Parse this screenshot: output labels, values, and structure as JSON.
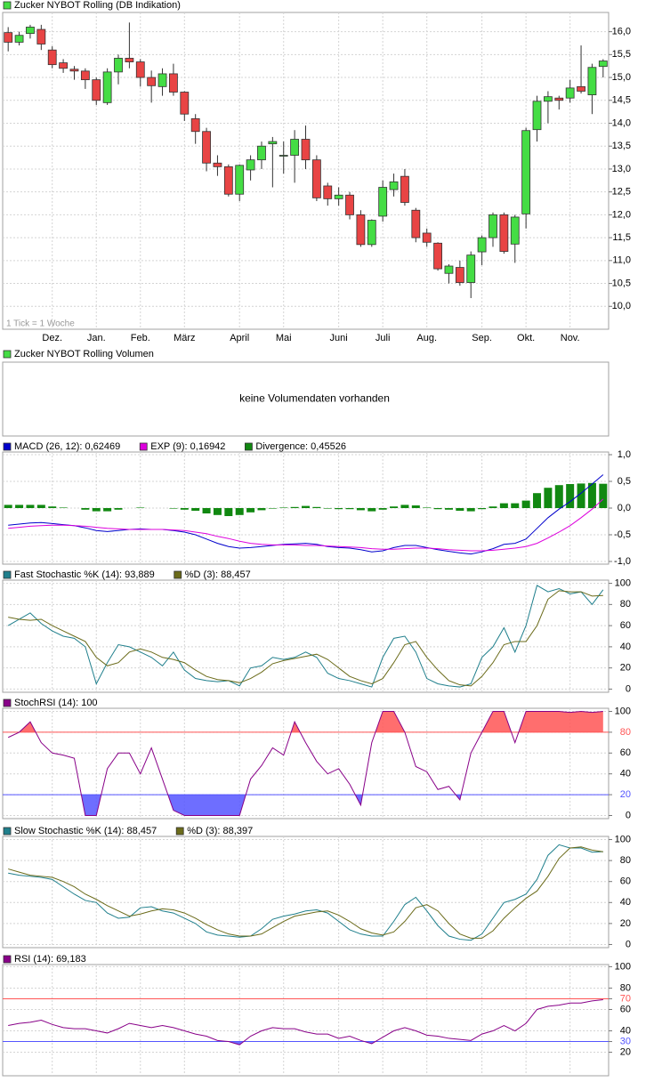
{
  "chart_data": [
    {
      "type": "candlestick",
      "title": "Zucker NYBOT Rolling (DB Indikation)",
      "annotation": "1 Tick = 1 Woche",
      "categories": [
        null,
        null,
        null,
        null,
        "Dez.",
        null,
        null,
        null,
        "Jan.",
        null,
        null,
        null,
        "Feb.",
        null,
        null,
        null,
        "März",
        null,
        null,
        null,
        null,
        "April",
        null,
        null,
        null,
        "Mai",
        null,
        null,
        null,
        null,
        "Juni",
        null,
        null,
        null,
        "Juli",
        null,
        null,
        null,
        "Aug.",
        null,
        null,
        null,
        null,
        "Sep.",
        null,
        null,
        null,
        "Okt.",
        null,
        null,
        null,
        "Nov.",
        null,
        null,
        null
      ],
      "open": [
        15.98,
        15.77,
        15.96,
        16.05,
        15.6,
        15.32,
        15.18,
        15.14,
        14.95,
        14.45,
        15.12,
        15.42,
        15.34,
        15.0,
        14.8,
        15.08,
        14.68,
        14.1,
        13.82,
        13.13,
        13.05,
        12.45,
        12.98,
        13.2,
        13.55,
        13.3,
        13.3,
        13.65,
        13.2,
        12.63,
        12.35,
        12.43,
        12.0,
        11.35,
        11.97,
        12.55,
        12.84,
        12.1,
        11.6,
        11.38,
        10.72,
        10.85,
        10.52,
        11.19,
        11.5,
        12.0,
        11.36,
        12.02,
        13.86,
        14.48,
        14.55,
        14.55,
        14.8,
        14.62,
        15.24
      ],
      "high": [
        16.1,
        16.0,
        16.15,
        16.15,
        15.68,
        15.4,
        15.25,
        15.2,
        15.0,
        15.2,
        15.5,
        16.2,
        15.4,
        15.15,
        15.2,
        15.3,
        14.7,
        14.2,
        13.9,
        13.3,
        13.1,
        13.1,
        13.3,
        13.6,
        13.7,
        13.6,
        13.85,
        13.95,
        13.3,
        12.7,
        12.6,
        12.5,
        12.1,
        11.9,
        12.75,
        12.9,
        13.0,
        12.15,
        11.7,
        11.4,
        10.92,
        11.0,
        11.2,
        11.55,
        12.05,
        12.05,
        12.0,
        13.9,
        14.6,
        14.7,
        14.6,
        14.95,
        15.7,
        15.3,
        15.4
      ],
      "low": [
        15.57,
        15.7,
        15.85,
        15.6,
        15.2,
        15.1,
        14.95,
        14.75,
        14.4,
        14.4,
        14.85,
        15.2,
        14.8,
        14.45,
        14.6,
        14.6,
        14.05,
        13.55,
        12.95,
        12.85,
        12.4,
        12.3,
        12.75,
        13.0,
        12.6,
        12.9,
        12.7,
        13.0,
        12.3,
        12.2,
        12.2,
        11.9,
        11.3,
        11.3,
        11.85,
        12.4,
        12.2,
        11.4,
        11.3,
        10.78,
        10.5,
        10.45,
        10.18,
        10.9,
        11.3,
        11.15,
        10.95,
        11.7,
        13.6,
        14.0,
        14.3,
        14.45,
        14.65,
        14.2,
        15.0
      ],
      "close": [
        15.77,
        15.92,
        16.1,
        15.73,
        15.28,
        15.2,
        15.14,
        14.95,
        14.5,
        15.12,
        15.42,
        15.34,
        15.0,
        14.82,
        15.08,
        14.68,
        14.2,
        13.82,
        13.13,
        13.05,
        12.45,
        13.08,
        13.2,
        13.5,
        13.6,
        13.3,
        13.65,
        13.2,
        12.37,
        12.35,
        12.43,
        12.0,
        11.35,
        11.88,
        12.6,
        12.72,
        12.27,
        11.5,
        11.4,
        10.82,
        10.88,
        10.52,
        11.12,
        11.5,
        12.0,
        11.2,
        11.95,
        13.84,
        14.48,
        14.58,
        14.5,
        14.77,
        14.7,
        15.22,
        15.36
      ],
      "up_color": "#44dd44",
      "down_color": "#e84444",
      "ylim": [
        9.5,
        16.42
      ],
      "yticks": [
        {
          "value": 10.0,
          "label": "10,0"
        },
        {
          "value": 10.5,
          "label": "10,5"
        },
        {
          "value": 11.0,
          "label": "11,0"
        },
        {
          "value": 11.5,
          "label": "11,5"
        },
        {
          "value": 12.0,
          "label": "12,0"
        },
        {
          "value": 12.5,
          "label": "12,5"
        },
        {
          "value": 13.0,
          "label": "13,0"
        },
        {
          "value": 13.5,
          "label": "13,5"
        },
        {
          "value": 14.0,
          "label": "14,0"
        },
        {
          "value": 14.5,
          "label": "14,5"
        },
        {
          "value": 15.0,
          "label": "15,0"
        },
        {
          "value": 15.5,
          "label": "15,5"
        },
        {
          "value": 16.0,
          "label": "16,0"
        }
      ],
      "grid": true
    },
    {
      "type": "empty",
      "title": "Zucker NYBOT Rolling Volumen",
      "color": "#44dd44",
      "message": "keine Volumendaten vorhanden"
    },
    {
      "type": "macd",
      "series": [
        {
          "name": "MACD (26, 12): 0,62469",
          "color": "#0000cc",
          "style": "line",
          "values": [
            -0.32,
            -0.3,
            -0.28,
            -0.27,
            -0.29,
            -0.31,
            -0.33,
            -0.37,
            -0.42,
            -0.44,
            -0.42,
            -0.4,
            -0.39,
            -0.4,
            -0.4,
            -0.42,
            -0.45,
            -0.5,
            -0.58,
            -0.66,
            -0.72,
            -0.75,
            -0.74,
            -0.72,
            -0.7,
            -0.68,
            -0.67,
            -0.66,
            -0.68,
            -0.72,
            -0.74,
            -0.75,
            -0.78,
            -0.82,
            -0.8,
            -0.74,
            -0.7,
            -0.7,
            -0.74,
            -0.78,
            -0.81,
            -0.84,
            -0.86,
            -0.82,
            -0.76,
            -0.68,
            -0.66,
            -0.58,
            -0.38,
            -0.18,
            -0.02,
            0.12,
            0.28,
            0.45,
            0.62469
          ]
        },
        {
          "name": "EXP (9): 0,16942",
          "color": "#dd00dd",
          "style": "line",
          "values": [
            -0.38,
            -0.36,
            -0.34,
            -0.33,
            -0.32,
            -0.32,
            -0.33,
            -0.34,
            -0.36,
            -0.38,
            -0.39,
            -0.4,
            -0.4,
            -0.4,
            -0.4,
            -0.41,
            -0.42,
            -0.45,
            -0.48,
            -0.53,
            -0.57,
            -0.62,
            -0.66,
            -0.68,
            -0.69,
            -0.69,
            -0.69,
            -0.7,
            -0.7,
            -0.71,
            -0.72,
            -0.73,
            -0.74,
            -0.76,
            -0.77,
            -0.77,
            -0.76,
            -0.75,
            -0.75,
            -0.76,
            -0.78,
            -0.79,
            -0.8,
            -0.8,
            -0.79,
            -0.77,
            -0.75,
            -0.72,
            -0.66,
            -0.56,
            -0.45,
            -0.33,
            -0.18,
            -0.02,
            0.16942
          ]
        },
        {
          "name": "Divergence: 0,45526",
          "color": "#118811",
          "style": "bar",
          "values": [
            0.06,
            0.06,
            0.06,
            0.06,
            0.03,
            0.01,
            0,
            -0.03,
            -0.06,
            -0.06,
            -0.03,
            0,
            0.01,
            0,
            0,
            -0.01,
            -0.03,
            -0.05,
            -0.1,
            -0.13,
            -0.15,
            -0.13,
            -0.08,
            -0.04,
            -0.01,
            0.01,
            0.02,
            0.04,
            0.02,
            -0.01,
            -0.02,
            -0.02,
            -0.04,
            -0.06,
            -0.03,
            0.03,
            0.06,
            0.05,
            0.01,
            -0.02,
            -0.03,
            -0.05,
            -0.06,
            -0.02,
            0.03,
            0.09,
            0.09,
            0.14,
            0.28,
            0.38,
            0.43,
            0.45,
            0.46,
            0.47,
            0.45526
          ]
        }
      ],
      "ylim": [
        -1.05,
        1.05
      ],
      "yticks": [
        {
          "value": -1.0,
          "label": "-1,0"
        },
        {
          "value": -0.5,
          "label": "-0,5"
        },
        {
          "value": 0.0,
          "label": "0,0"
        },
        {
          "value": 0.5,
          "label": "0,5"
        },
        {
          "value": 1.0,
          "label": "1,0"
        }
      ],
      "grid": true
    },
    {
      "type": "line",
      "series": [
        {
          "name": "Fast Stochastic %K (14): 93,889",
          "color": "#1f7f8c",
          "style": "line",
          "values": [
            60,
            66,
            72,
            62,
            55,
            50,
            48,
            40,
            5,
            25,
            42,
            40,
            35,
            30,
            22,
            35,
            18,
            10,
            8,
            7,
            8,
            3,
            20,
            22,
            30,
            28,
            30,
            35,
            30,
            15,
            10,
            8,
            5,
            2,
            30,
            48,
            50,
            35,
            10,
            5,
            3,
            2,
            5,
            30,
            40,
            58,
            35,
            60,
            98,
            92,
            95,
            90,
            92,
            80,
            93.889
          ]
        },
        {
          "name": "%D (3): 88,457",
          "color": "#6b6b1a",
          "style": "line",
          "values": [
            68,
            66,
            65,
            66,
            60,
            55,
            50,
            45,
            30,
            22,
            25,
            35,
            38,
            35,
            30,
            28,
            25,
            18,
            12,
            9,
            8,
            6,
            10,
            16,
            24,
            27,
            29,
            31,
            33,
            28,
            20,
            12,
            8,
            5,
            10,
            25,
            42,
            45,
            30,
            18,
            8,
            4,
            3,
            12,
            25,
            42,
            45,
            45,
            60,
            85,
            93,
            92,
            92,
            88,
            88.457
          ]
        }
      ],
      "ylim": [
        -3,
        103
      ],
      "yticks": [
        0,
        20,
        40,
        60,
        80,
        100
      ],
      "grid": true
    },
    {
      "type": "line",
      "series": [
        {
          "name": "StochRSI (14): 100",
          "color": "#880088",
          "style": "line",
          "values": [
            75,
            80,
            90,
            70,
            60,
            58,
            55,
            0,
            0,
            45,
            60,
            60,
            40,
            65,
            35,
            5,
            0,
            0,
            0,
            0,
            0,
            0,
            35,
            48,
            65,
            58,
            90,
            70,
            52,
            40,
            45,
            30,
            10,
            70,
            100,
            100,
            80,
            47,
            42,
            25,
            28,
            15,
            60,
            80,
            100,
            100,
            70,
            100,
            100,
            100,
            100,
            99,
            100,
            99,
            100
          ]
        }
      ],
      "bands": [
        {
          "value": 80,
          "color": "#ff5555",
          "side": "above"
        },
        {
          "value": 20,
          "color": "#5555ff",
          "side": "below"
        }
      ],
      "ylim": [
        -3,
        103
      ],
      "yticks": [
        0,
        20,
        40,
        60,
        80,
        100
      ],
      "grid": true
    },
    {
      "type": "line",
      "series": [
        {
          "name": "Slow Stochastic %K (14): 88,457",
          "color": "#1f7f8c",
          "style": "line",
          "values": [
            68,
            66,
            65,
            64,
            62,
            55,
            48,
            42,
            40,
            30,
            25,
            26,
            35,
            36,
            32,
            30,
            25,
            20,
            12,
            9,
            8,
            7,
            8,
            15,
            24,
            27,
            29,
            32,
            33,
            30,
            22,
            14,
            10,
            8,
            8,
            22,
            38,
            45,
            32,
            18,
            8,
            5,
            4,
            10,
            25,
            40,
            43,
            48,
            62,
            85,
            95,
            92,
            92,
            88,
            88.457
          ]
        },
        {
          "name": "%D (3): 88,397",
          "color": "#6b6b1a",
          "style": "line",
          "values": [
            72,
            69,
            66,
            65,
            64,
            60,
            55,
            48,
            43,
            37,
            32,
            27,
            29,
            32,
            34,
            33,
            30,
            25,
            19,
            14,
            10,
            8,
            8,
            10,
            16,
            22,
            27,
            29,
            31,
            32,
            28,
            22,
            15,
            11,
            9,
            12,
            22,
            35,
            38,
            32,
            20,
            10,
            6,
            6,
            13,
            25,
            35,
            44,
            51,
            65,
            82,
            92,
            93,
            90,
            88.397
          ]
        }
      ],
      "ylim": [
        -3,
        103
      ],
      "yticks": [
        0,
        20,
        40,
        60,
        80,
        100
      ],
      "grid": true
    },
    {
      "type": "line",
      "series": [
        {
          "name": "RSI (14): 69,183",
          "color": "#880088",
          "style": "line",
          "values": [
            45,
            47,
            48,
            50,
            46,
            43,
            42,
            42,
            40,
            38,
            42,
            47,
            45,
            43,
            45,
            43,
            40,
            37,
            35,
            31,
            30,
            27,
            35,
            40,
            43,
            42,
            42,
            39,
            37,
            37,
            33,
            35,
            31,
            28,
            34,
            40,
            43,
            40,
            36,
            35,
            33,
            32,
            31,
            37,
            40,
            45,
            40,
            47,
            60,
            63,
            64,
            66,
            66,
            68,
            69.183
          ]
        }
      ],
      "bands": [
        {
          "value": 70,
          "color": "#ff5555",
          "side": "above"
        },
        {
          "value": 30,
          "color": "#5555ff",
          "side": "below"
        }
      ],
      "ylim": [
        -2,
        102
      ],
      "yticks": [
        20,
        30,
        40,
        60,
        70,
        80,
        100
      ],
      "grid": true
    }
  ]
}
